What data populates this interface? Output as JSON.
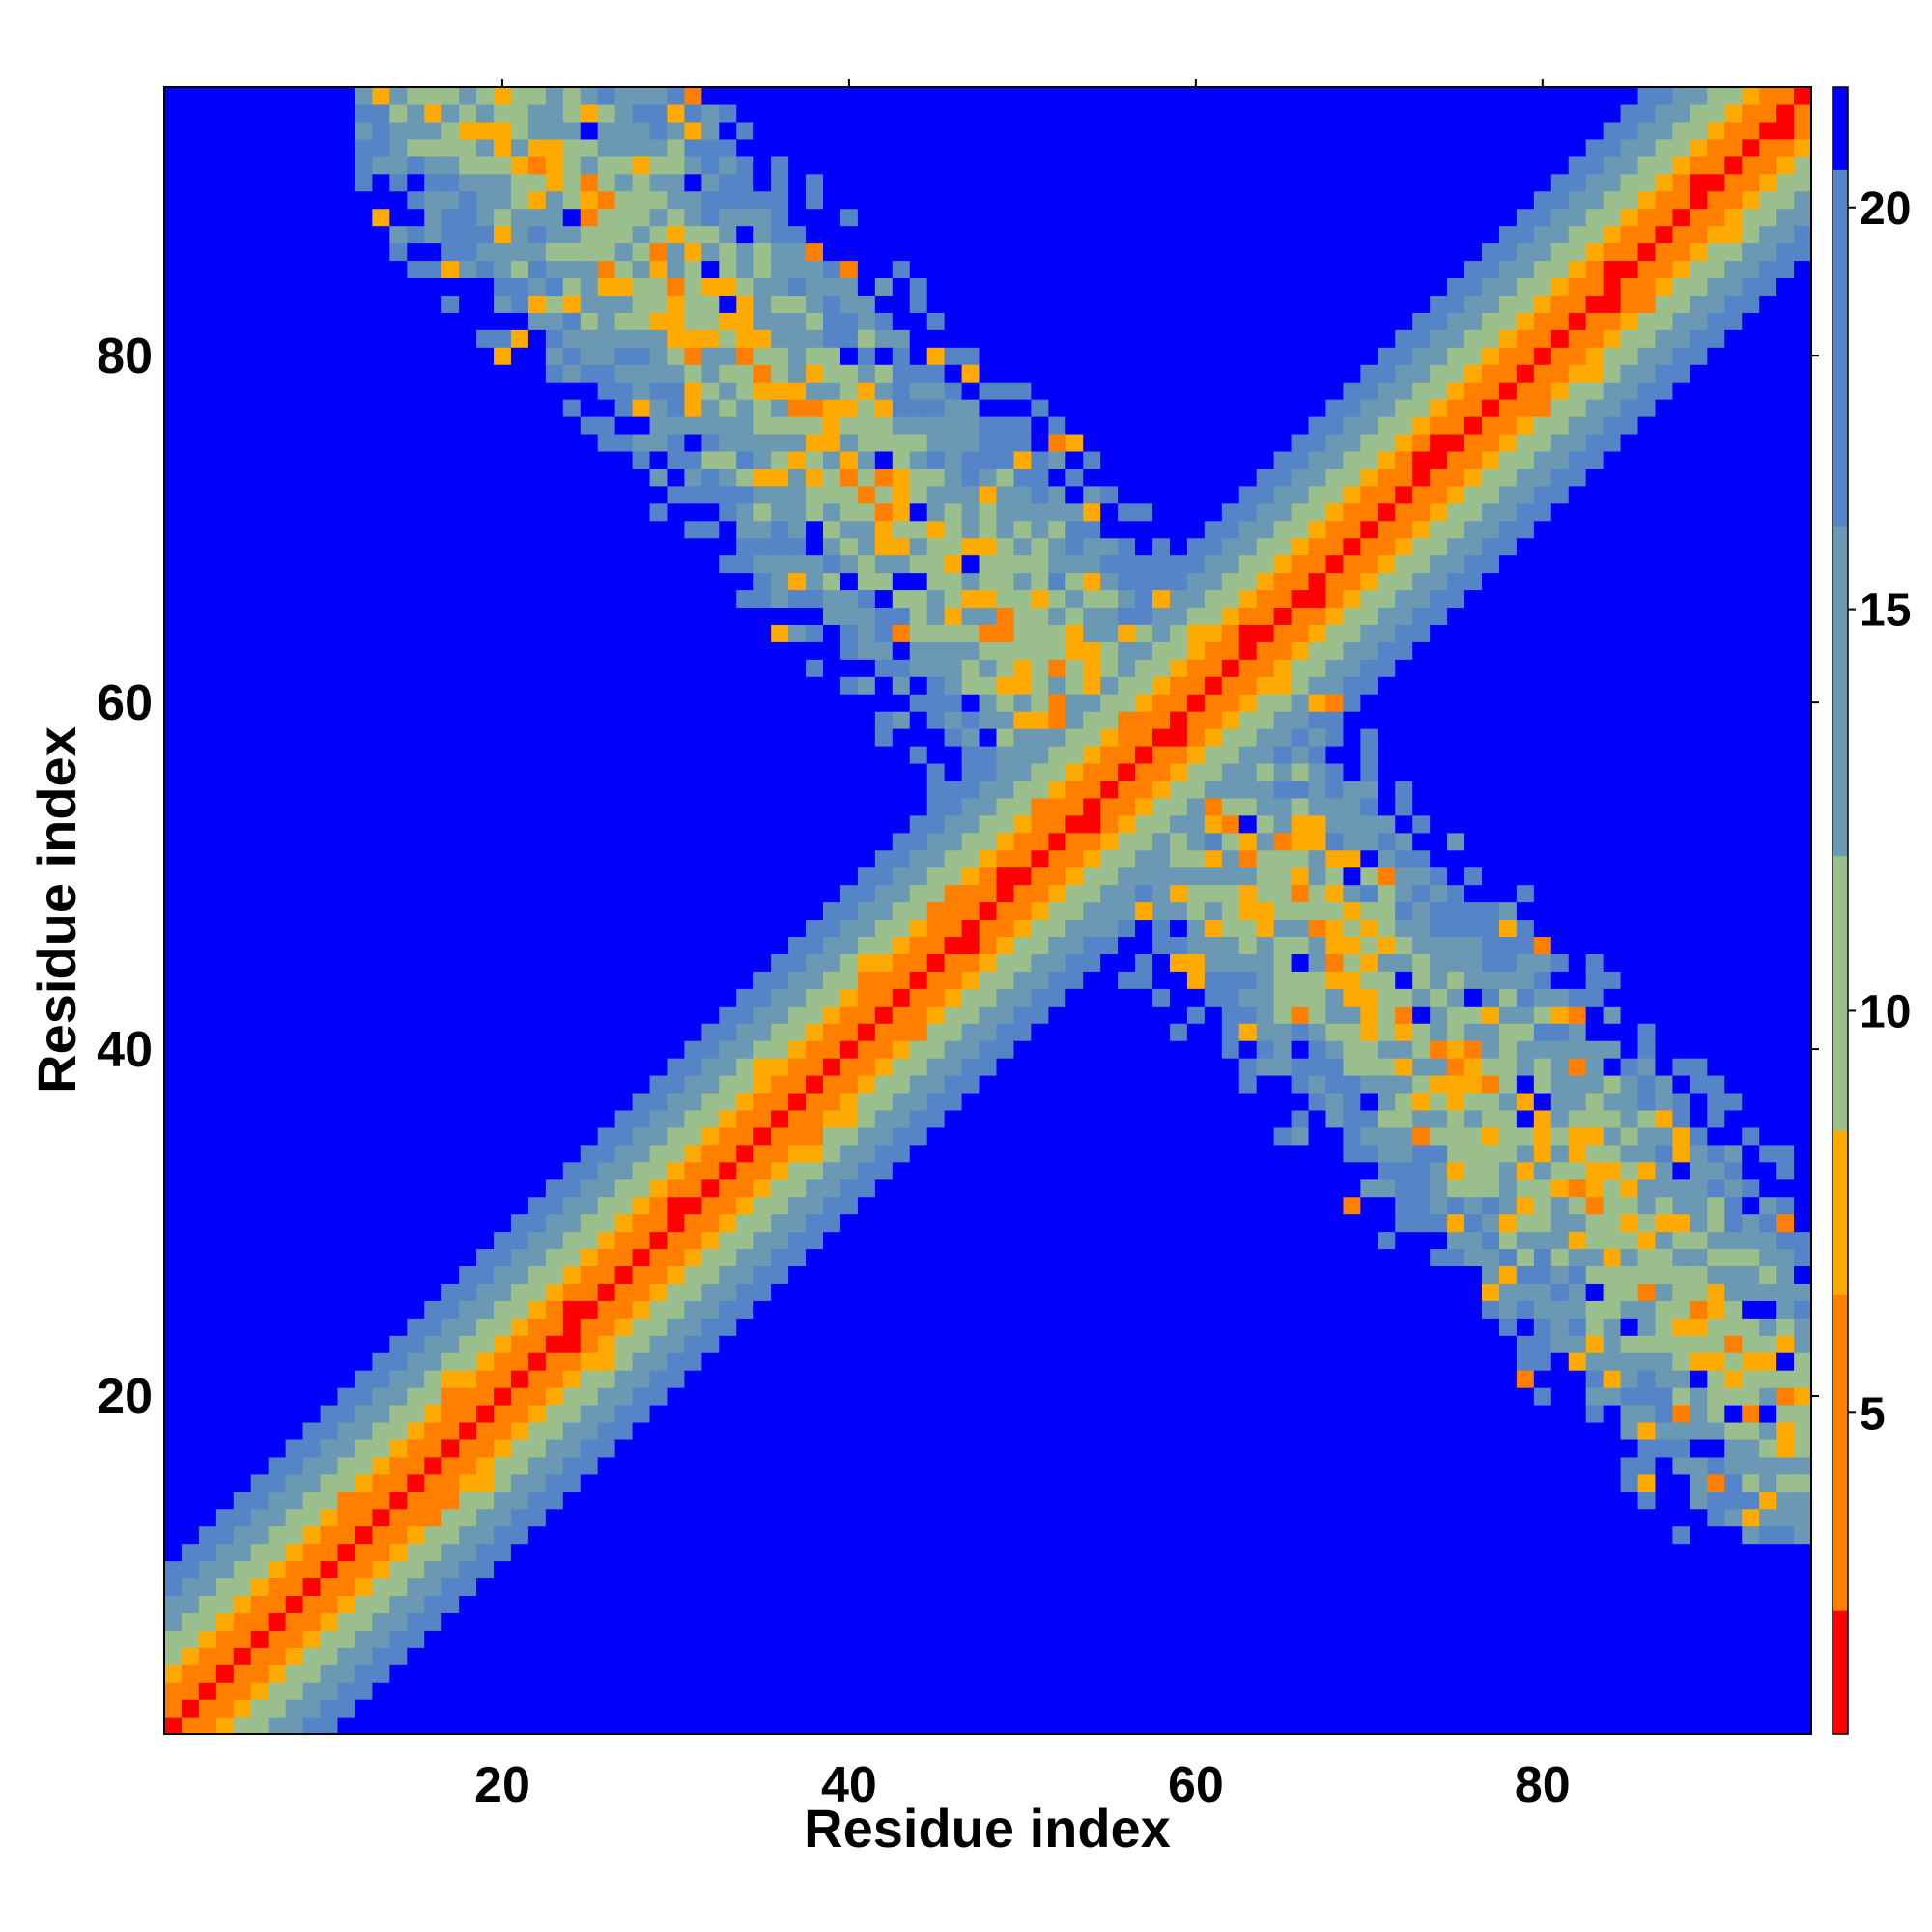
{
  "chart_data": {
    "type": "heatmap",
    "title": "",
    "xlabel": "Residue index",
    "ylabel": "Residue index",
    "xlim": [
      0.5,
      95.5
    ],
    "ylim": [
      0.5,
      95.5
    ],
    "n": 95,
    "x_ticks": [
      20,
      40,
      60,
      80
    ],
    "y_ticks": [
      20,
      40,
      60,
      80
    ],
    "colorbar": {
      "ticks": [
        5,
        10,
        15,
        20
      ],
      "range": [
        1,
        21.5
      ],
      "position": "right",
      "colors": [
        "#ff0000",
        "#ff7f00",
        "#ffaa00",
        "#9bbf8c",
        "#6b98b3",
        "#5585c6",
        "#0000ff"
      ]
    },
    "color_scale_description": "Distance-like value per residue pair; red ≈ 1 (diagonal), orange ≈ 6-8, sage green ≈ 10, steel blue ≈ 15-20, saturated blue ≥ 21 (background)",
    "features": {
      "main_diagonal": {
        "from": [
          1,
          1
        ],
        "to": [
          95,
          95
        ],
        "center_value": 1,
        "half_width_residues": 8
      },
      "anti_diagonal_contacts": {
        "from": [
          12,
          92
        ],
        "to": [
          92,
          20
        ],
        "value_range": [
          6,
          20
        ]
      }
    },
    "grid": false,
    "legend": "colorbar-right"
  }
}
